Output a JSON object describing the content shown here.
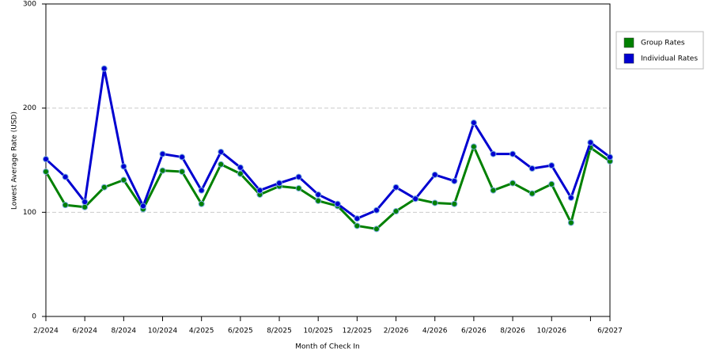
{
  "chart_data": {
    "type": "line",
    "xlabel": "Month of Check In",
    "ylabel": "Lowest Average Rate (USD)",
    "categories": [
      "2/2024",
      null,
      "6/2024",
      null,
      "8/2024",
      null,
      "10/2024",
      null,
      "4/2025",
      null,
      "6/2025",
      null,
      "8/2025",
      null,
      "10/2025",
      null,
      "12/2025",
      null,
      "2/2026",
      null,
      "4/2026",
      null,
      "6/2026",
      null,
      "8/2026",
      null,
      "10/2026",
      null,
      null,
      "6/2027"
    ],
    "series": [
      {
        "name": "Group Rates",
        "color": "#008000",
        "values": [
          139,
          107,
          105,
          124,
          131,
          103,
          140,
          139,
          108,
          146,
          137,
          117,
          125,
          123,
          111,
          106,
          87,
          84,
          101,
          113,
          109,
          108,
          163,
          121,
          128,
          118,
          127,
          90,
          162,
          149
        ]
      },
      {
        "name": "Individual Rates",
        "color": "#0000d0",
        "values": [
          151,
          134,
          110,
          238,
          144,
          106,
          156,
          153,
          121,
          158,
          143,
          121,
          128,
          134,
          117,
          108,
          94,
          102,
          124,
          113,
          136,
          130,
          186,
          156,
          156,
          142,
          145,
          114,
          167,
          153
        ]
      }
    ],
    "ylim": [
      0,
      300
    ],
    "yticks": [
      0,
      100,
      200,
      300
    ],
    "grid": true,
    "legend": "right"
  }
}
